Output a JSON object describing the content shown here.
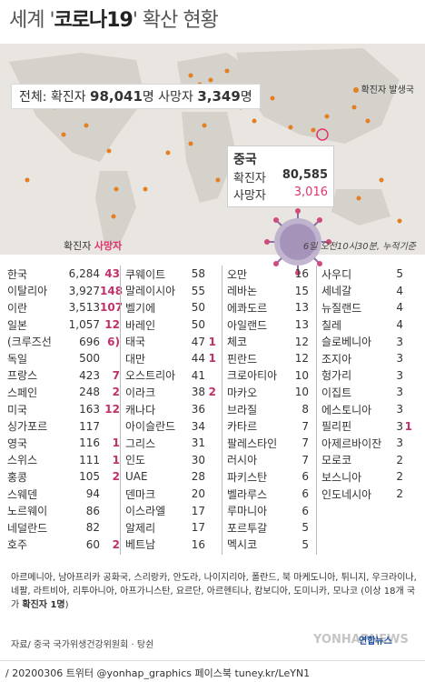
{
  "header": {
    "title_a": "세계 '",
    "title_b": "코로나19",
    "title_c": "' 확산",
    "title_d": " 현황"
  },
  "summary": {
    "label": "전체:",
    "confirmed_label": "확진자",
    "confirmed": "98,041",
    "unit": "명",
    "death_label": "사망자",
    "death": "3,349"
  },
  "map": {
    "dot_legend": "확진자 발생국"
  },
  "china": {
    "name": "중국",
    "confirmed_label": "확진자",
    "confirmed": "80,585",
    "death_label": "사망자",
    "death": "3,016"
  },
  "legend": {
    "confirmed": "확진자",
    "deaths": "사망자"
  },
  "timestamp": "6일 오전10시30분, 누적기준",
  "columns": [
    [
      {
        "n": "한국",
        "c": "6,284",
        "d": "43"
      },
      {
        "n": "이탈리아",
        "c": "3,927",
        "d": "148"
      },
      {
        "n": "이란",
        "c": "3,513",
        "d": "107"
      },
      {
        "n": "일본",
        "c": "1,057",
        "d": "12"
      },
      {
        "n": "(크루즈선",
        "c": "696",
        "d": "6)"
      },
      {
        "n": "독일",
        "c": "500",
        "d": ""
      },
      {
        "n": "프랑스",
        "c": "423",
        "d": "7"
      },
      {
        "n": "스페인",
        "c": "248",
        "d": "2"
      },
      {
        "n": "미국",
        "c": "163",
        "d": "12"
      },
      {
        "n": "싱가포르",
        "c": "117",
        "d": ""
      },
      {
        "n": "영국",
        "c": "116",
        "d": "1"
      },
      {
        "n": "스위스",
        "c": "111",
        "d": "1"
      },
      {
        "n": "홍콩",
        "c": "105",
        "d": "2"
      },
      {
        "n": "스웨덴",
        "c": "94",
        "d": ""
      },
      {
        "n": "노르웨이",
        "c": "86",
        "d": ""
      },
      {
        "n": "네덜란드",
        "c": "82",
        "d": ""
      },
      {
        "n": "호주",
        "c": "60",
        "d": "2"
      }
    ],
    [
      {
        "n": "쿠웨이트",
        "c": "58",
        "d": ""
      },
      {
        "n": "말레이시아",
        "c": "55",
        "d": ""
      },
      {
        "n": "벨기에",
        "c": "50",
        "d": ""
      },
      {
        "n": "바레인",
        "c": "50",
        "d": ""
      },
      {
        "n": "태국",
        "c": "47",
        "d": "1"
      },
      {
        "n": "대만",
        "c": "44",
        "d": "1"
      },
      {
        "n": "오스트리아",
        "c": "41",
        "d": ""
      },
      {
        "n": "이라크",
        "c": "38",
        "d": "2"
      },
      {
        "n": "캐나다",
        "c": "36",
        "d": ""
      },
      {
        "n": "아이슬란드",
        "c": "34",
        "d": ""
      },
      {
        "n": "그리스",
        "c": "31",
        "d": ""
      },
      {
        "n": "인도",
        "c": "30",
        "d": ""
      },
      {
        "n": "UAE",
        "c": "28",
        "d": ""
      },
      {
        "n": "덴마크",
        "c": "20",
        "d": ""
      },
      {
        "n": "이스라엘",
        "c": "17",
        "d": ""
      },
      {
        "n": "알제리",
        "c": "17",
        "d": ""
      },
      {
        "n": "베트남",
        "c": "16",
        "d": ""
      }
    ],
    [
      {
        "n": "오만",
        "c": "16",
        "d": ""
      },
      {
        "n": "레바논",
        "c": "15",
        "d": ""
      },
      {
        "n": "에콰도르",
        "c": "13",
        "d": ""
      },
      {
        "n": "아일랜드",
        "c": "13",
        "d": ""
      },
      {
        "n": "체코",
        "c": "12",
        "d": ""
      },
      {
        "n": "핀란드",
        "c": "12",
        "d": ""
      },
      {
        "n": "크로아티아",
        "c": "10",
        "d": ""
      },
      {
        "n": "마카오",
        "c": "10",
        "d": ""
      },
      {
        "n": "브라질",
        "c": "8",
        "d": ""
      },
      {
        "n": "카타르",
        "c": "7",
        "d": ""
      },
      {
        "n": "팔레스타인",
        "c": "7",
        "d": ""
      },
      {
        "n": "러시아",
        "c": "7",
        "d": ""
      },
      {
        "n": "파키스탄",
        "c": "6",
        "d": ""
      },
      {
        "n": "벨라루스",
        "c": "6",
        "d": ""
      },
      {
        "n": "루마니아",
        "c": "6",
        "d": ""
      },
      {
        "n": "포르투갈",
        "c": "5",
        "d": ""
      },
      {
        "n": "멕시코",
        "c": "5",
        "d": ""
      }
    ],
    [
      {
        "n": "사우디",
        "c": "5",
        "d": ""
      },
      {
        "n": "세네갈",
        "c": "4",
        "d": ""
      },
      {
        "n": "뉴질랜드",
        "c": "4",
        "d": ""
      },
      {
        "n": "칠레",
        "c": "4",
        "d": ""
      },
      {
        "n": "슬로베니아",
        "c": "3",
        "d": ""
      },
      {
        "n": "조지아",
        "c": "3",
        "d": ""
      },
      {
        "n": "헝가리",
        "c": "3",
        "d": ""
      },
      {
        "n": "이집트",
        "c": "3",
        "d": ""
      },
      {
        "n": "에스토니아",
        "c": "3",
        "d": ""
      },
      {
        "n": "필리핀",
        "c": "3",
        "d": "1"
      },
      {
        "n": "아제르바이잔",
        "c": "3",
        "d": ""
      },
      {
        "n": "모로코",
        "c": "2",
        "d": ""
      },
      {
        "n": "보스니아",
        "c": "2",
        "d": ""
      },
      {
        "n": "인도네시아",
        "c": "2",
        "d": ""
      }
    ]
  ],
  "others": {
    "text": "아르메니아, 남아프리카 공화국, 스리랑카, 안도라, 나이지리아, 폴란드, 북 마케도니아, 튀니지, 우크라이나, 네팔, 라트비아, 리투아니아, 아프가니스탄, 요르단, 아르헨티나, 캄보디아, 도미니카, 모나코 (이상 18개 국가 ",
    "bold": "확진자 1명",
    "end": ")"
  },
  "source": "자료/ 중국 국가위생건강위원회 · 탕쉰",
  "logo": {
    "main": "YONHAPNEWS",
    "small": "연합뉴스"
  },
  "footer": "/ 20200306  트위터 @yonhap_graphics  페이스북 tuney.kr/LeYN1",
  "colors": {
    "dot": "#e67e22",
    "death": "#c0306b",
    "map_bg": "#e9e6e1"
  }
}
